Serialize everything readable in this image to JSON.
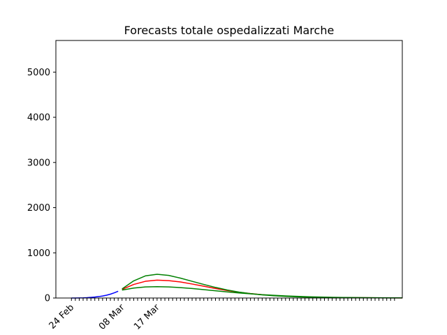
{
  "chart_data": {
    "type": "line",
    "title": "Forecasts totale ospedalizzati Marche",
    "xlabel": "",
    "ylabel": "",
    "x_range": [
      "2020-02-20",
      "2020-05-19"
    ],
    "ylim": [
      0,
      5700
    ],
    "yticks": [
      0,
      1000,
      2000,
      3000,
      4000,
      5000
    ],
    "x_tick_step_days": 1,
    "x_tick_first": "2020-02-24",
    "x_tick_last": "2020-05-17",
    "x_tick_labels": [
      {
        "date": "2020-02-24",
        "label": "24 Feb"
      },
      {
        "date": "2020-03-08",
        "label": "08 Mar"
      },
      {
        "date": "2020-03-17",
        "label": "17 Mar"
      }
    ],
    "grid": false,
    "legend": "none",
    "series": [
      {
        "color": "#0000ff",
        "x": [
          "2020-02-24",
          "2020-02-25",
          "2020-02-26",
          "2020-02-27",
          "2020-02-28",
          "2020-02-29",
          "2020-03-01",
          "2020-03-02",
          "2020-03-03",
          "2020-03-04",
          "2020-03-05",
          "2020-03-06",
          "2020-03-07"
        ],
        "y": [
          0,
          0,
          2,
          4,
          8,
          14,
          22,
          32,
          45,
          62,
          85,
          115,
          150
        ]
      },
      {
        "color": "#ff0000",
        "x": [
          "2020-03-08",
          "2020-03-11",
          "2020-03-14",
          "2020-03-17",
          "2020-03-20",
          "2020-03-23",
          "2020-03-26",
          "2020-03-29",
          "2020-04-01",
          "2020-04-04",
          "2020-04-07",
          "2020-04-10",
          "2020-04-13",
          "2020-04-16",
          "2020-04-19",
          "2020-04-22",
          "2020-04-25",
          "2020-04-28",
          "2020-05-01",
          "2020-05-04",
          "2020-05-07",
          "2020-05-10",
          "2020-05-13",
          "2020-05-16",
          "2020-05-19"
        ],
        "y": [
          190,
          300,
          370,
          395,
          385,
          355,
          310,
          260,
          210,
          165,
          128,
          98,
          74,
          55,
          41,
          30,
          22,
          16,
          12,
          9,
          7,
          5,
          4,
          3,
          2
        ]
      },
      {
        "color": "#008000",
        "x": [
          "2020-03-08",
          "2020-03-11",
          "2020-03-14",
          "2020-03-17",
          "2020-03-20",
          "2020-03-23",
          "2020-03-26",
          "2020-03-29",
          "2020-04-01",
          "2020-04-04",
          "2020-04-07",
          "2020-04-10",
          "2020-04-13",
          "2020-04-16",
          "2020-04-19",
          "2020-04-22",
          "2020-04-25",
          "2020-04-28",
          "2020-05-01",
          "2020-05-04",
          "2020-05-07",
          "2020-05-10",
          "2020-05-13",
          "2020-05-16",
          "2020-05-19"
        ],
        "y": [
          200,
          380,
          490,
          525,
          500,
          440,
          370,
          300,
          235,
          178,
          132,
          96,
          70,
          50,
          36,
          26,
          19,
          14,
          10,
          7,
          5,
          4,
          3,
          2,
          2
        ]
      },
      {
        "color": "#008000",
        "x": [
          "2020-03-08",
          "2020-03-11",
          "2020-03-14",
          "2020-03-17",
          "2020-03-20",
          "2020-03-23",
          "2020-03-26",
          "2020-03-29",
          "2020-04-01",
          "2020-04-04",
          "2020-04-07",
          "2020-04-10",
          "2020-04-13",
          "2020-04-16",
          "2020-04-19",
          "2020-04-22",
          "2020-04-25",
          "2020-04-28",
          "2020-05-01",
          "2020-05-04",
          "2020-05-07",
          "2020-05-10",
          "2020-05-13",
          "2020-05-16",
          "2020-05-19"
        ],
        "y": [
          175,
          220,
          245,
          252,
          245,
          230,
          210,
          185,
          160,
          135,
          112,
          92,
          74,
          59,
          46,
          36,
          28,
          21,
          16,
          12,
          9,
          7,
          5,
          4,
          3
        ]
      }
    ]
  }
}
